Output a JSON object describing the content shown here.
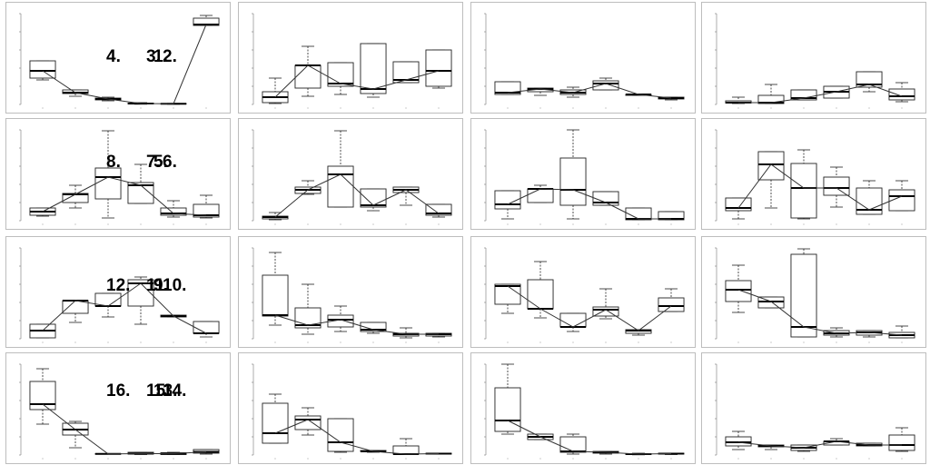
{
  "chart_data": [
    {
      "type": "box",
      "label": "1.",
      "categories": [
        "1",
        "2",
        "3",
        "4",
        "5",
        "6"
      ],
      "ylim": [
        0,
        10
      ],
      "boxes": [
        {
          "min": 2.7,
          "q1": 2.9,
          "median": 3.7,
          "q3": 4.8,
          "max": 4.8
        },
        {
          "min": 0.9,
          "q1": 1.2,
          "median": 1.3,
          "q3": 1.6,
          "max": 1.6
        },
        {
          "min": 0.4,
          "q1": 0.5,
          "median": 0.6,
          "q3": 0.7,
          "max": 0.8
        },
        {
          "min": 0.02,
          "q1": 0.05,
          "median": 0.1,
          "q3": 0.15,
          "max": 0.2
        },
        {
          "min": 0.02,
          "q1": 0.04,
          "median": 0.08,
          "q3": 0.1,
          "max": 0.12
        },
        {
          "min": 8.7,
          "q1": 8.7,
          "median": 8.8,
          "q3": 9.5,
          "max": 9.8
        }
      ]
    },
    {
      "type": "box",
      "label": "5.",
      "categories": [
        "1",
        "2",
        "3",
        "4",
        "5",
        "6"
      ],
      "ylim": [
        0,
        10
      ],
      "boxes": [
        {
          "min": 0.5,
          "q1": 0.6,
          "median": 1.0,
          "q3": 1.4,
          "max": 1.4
        },
        {
          "min": 1.4,
          "q1": 2.0,
          "median": 2.9,
          "q3": 3.0,
          "max": 3.9
        },
        {
          "min": 0.3,
          "q1": 2.4,
          "median": 4.8,
          "q3": 5.8,
          "max": 9.9
        },
        {
          "min": 1.9,
          "q1": 1.9,
          "median": 3.9,
          "q3": 4.2,
          "max": 6.2
        },
        {
          "min": 0.4,
          "q1": 0.6,
          "median": 0.8,
          "q3": 1.4,
          "max": 2.2
        },
        {
          "min": 0.3,
          "q1": 0.4,
          "median": 0.6,
          "q3": 1.8,
          "max": 2.8
        }
      ]
    },
    {
      "type": "box",
      "label": "9.",
      "categories": [
        "1",
        "2",
        "3",
        "4",
        "5",
        "6"
      ],
      "ylim": [
        0,
        10
      ],
      "boxes": [
        {
          "min": 0.1,
          "q1": 0.1,
          "median": 0.9,
          "q3": 1.6,
          "max": 1.6
        },
        {
          "min": 1.8,
          "q1": 2.8,
          "median": 4.2,
          "q3": 4.2,
          "max": 4.2
        },
        {
          "min": 2.4,
          "q1": 3.6,
          "median": 3.6,
          "q3": 5.0,
          "max": 5.0
        },
        {
          "min": 1.6,
          "q1": 3.6,
          "median": 6.1,
          "q3": 6.5,
          "max": 6.8
        },
        {
          "min": 2.4,
          "q1": 2.4,
          "median": 2.5,
          "q3": 2.6,
          "max": 2.6
        },
        {
          "min": 0.2,
          "q1": 0.6,
          "median": 0.6,
          "q3": 1.9,
          "max": 1.9
        }
      ]
    },
    {
      "type": "box",
      "label": "13.",
      "categories": [
        "1",
        "2",
        "3",
        "4",
        "5",
        "6"
      ],
      "ylim": [
        0,
        10
      ],
      "boxes": [
        {
          "min": 3.4,
          "q1": 5.0,
          "median": 5.6,
          "q3": 8.1,
          "max": 9.5
        },
        {
          "min": 0.8,
          "q1": 2.2,
          "median": 2.8,
          "q3": 3.5,
          "max": 3.7
        },
        {
          "min": 0.1,
          "q1": 0.1,
          "median": 0.12,
          "q3": 0.15,
          "max": 0.15
        },
        {
          "min": 0.05,
          "q1": 0.1,
          "median": 0.15,
          "q3": 0.3,
          "max": 0.3
        },
        {
          "min": 0.05,
          "q1": 0.05,
          "median": 0.15,
          "q3": 0.25,
          "max": 0.3
        },
        {
          "min": 0.1,
          "q1": 0.2,
          "median": 0.35,
          "q3": 0.6,
          "max": 0.6
        }
      ]
    },
    {
      "type": "box",
      "label": "2.",
      "categories": [
        "1",
        "2",
        "3",
        "4",
        "5",
        "6"
      ],
      "ylim": [
        0,
        10
      ],
      "boxes": [
        {
          "min": 0.1,
          "q1": 0.2,
          "median": 0.8,
          "q3": 1.4,
          "max": 2.9
        },
        {
          "min": 0.9,
          "q1": 1.8,
          "median": 4.3,
          "q3": 4.3,
          "max": 6.4
        },
        {
          "min": 1.1,
          "q1": 2.0,
          "median": 2.3,
          "q3": 4.6,
          "max": 4.6
        },
        {
          "min": 0.8,
          "q1": 1.2,
          "median": 1.7,
          "q3": 6.7,
          "max": 6.7
        },
        {
          "min": 2.4,
          "q1": 2.4,
          "median": 2.7,
          "q3": 4.7,
          "max": 4.7
        },
        {
          "min": 1.8,
          "q1": 2.0,
          "median": 3.7,
          "q3": 6.0,
          "max": 6.0
        }
      ]
    },
    {
      "type": "box",
      "label": "6.",
      "categories": [
        "1",
        "2",
        "3",
        "4",
        "5",
        "6"
      ],
      "ylim": [
        0,
        10
      ],
      "boxes": [
        {
          "min": 0.1,
          "q1": 0.2,
          "median": 0.4,
          "q3": 0.5,
          "max": 0.9
        },
        {
          "min": 2.9,
          "q1": 3.0,
          "median": 3.4,
          "q3": 3.7,
          "max": 4.4
        },
        {
          "min": 1.5,
          "q1": 1.5,
          "median": 5.1,
          "q3": 6.0,
          "max": 9.9
        },
        {
          "min": 1.1,
          "q1": 1.5,
          "median": 1.7,
          "q3": 3.5,
          "max": 3.5
        },
        {
          "min": 1.7,
          "q1": 3.1,
          "median": 3.4,
          "q3": 3.7,
          "max": 3.7
        },
        {
          "min": 0.4,
          "q1": 0.6,
          "median": 0.8,
          "q3": 1.8,
          "max": 1.8
        }
      ]
    },
    {
      "type": "box",
      "label": "10.",
      "categories": [
        "1",
        "2",
        "3",
        "4",
        "5",
        "6"
      ],
      "ylim": [
        0,
        10
      ],
      "boxes": [
        {
          "min": 1.5,
          "q1": 2.5,
          "median": 2.6,
          "q3": 7.0,
          "max": 9.5
        },
        {
          "min": 0.5,
          "q1": 1.2,
          "median": 1.5,
          "q3": 3.4,
          "max": 6.0
        },
        {
          "min": 0.8,
          "q1": 1.3,
          "median": 2.1,
          "q3": 2.6,
          "max": 3.6
        },
        {
          "min": 0.6,
          "q1": 0.8,
          "median": 1.0,
          "q3": 1.8,
          "max": 1.8
        },
        {
          "min": 0.1,
          "q1": 0.3,
          "median": 0.5,
          "q3": 0.6,
          "max": 1.2
        },
        {
          "min": 0.2,
          "q1": 0.3,
          "median": 0.5,
          "q3": 0.6,
          "max": 0.6
        }
      ]
    },
    {
      "type": "box",
      "label": "14.",
      "categories": [
        "1",
        "2",
        "3",
        "4",
        "5",
        "6"
      ],
      "ylim": [
        0,
        10
      ],
      "boxes": [
        {
          "min": 1.3,
          "q1": 1.3,
          "median": 2.4,
          "q3": 5.7,
          "max": 6.7
        },
        {
          "min": 2.2,
          "q1": 2.8,
          "median": 3.9,
          "q3": 4.3,
          "max": 5.2
        },
        {
          "min": 0.3,
          "q1": 0.4,
          "median": 1.4,
          "q3": 4.0,
          "max": 4.0
        },
        {
          "min": 0.3,
          "q1": 0.4,
          "median": 0.4,
          "q3": 0.5,
          "max": 0.5
        },
        {
          "min": 0.1,
          "q1": 0.1,
          "median": 0.1,
          "q3": 1.0,
          "max": 1.8
        },
        {
          "min": 0.1,
          "q1": 0.1,
          "median": 0.15,
          "q3": 0.2,
          "max": 0.2
        }
      ]
    },
    {
      "type": "box",
      "label": "3.",
      "categories": [
        "1",
        "2",
        "3",
        "4",
        "5",
        "6"
      ],
      "ylim": [
        0,
        10
      ],
      "boxes": [
        {
          "min": 1.1,
          "q1": 1.1,
          "median": 1.3,
          "q3": 2.5,
          "max": 2.5
        },
        {
          "min": 1.0,
          "q1": 1.4,
          "median": 1.7,
          "q3": 1.8,
          "max": 1.8
        },
        {
          "min": 0.8,
          "q1": 1.1,
          "median": 1.3,
          "q3": 1.6,
          "max": 1.9
        },
        {
          "min": 1.6,
          "q1": 1.6,
          "median": 2.3,
          "q3": 2.6,
          "max": 2.9
        },
        {
          "min": 1.0,
          "q1": 1.0,
          "median": 1.1,
          "q3": 1.1,
          "max": 1.1
        },
        {
          "min": 0.5,
          "q1": 0.6,
          "median": 0.7,
          "q3": 0.8,
          "max": 0.8
        }
      ]
    },
    {
      "type": "box",
      "label": "7.",
      "categories": [
        "1",
        "2",
        "3",
        "4",
        "5",
        "6"
      ],
      "ylim": [
        0,
        10
      ],
      "boxes": [
        {
          "min": 0.2,
          "q1": 1.3,
          "median": 1.8,
          "q3": 3.3,
          "max": 3.3
        },
        {
          "min": 2.0,
          "q1": 2.0,
          "median": 3.5,
          "q3": 3.5,
          "max": 3.9
        },
        {
          "min": 0.2,
          "q1": 1.7,
          "median": 3.4,
          "q3": 6.9,
          "max": 10.0
        },
        {
          "min": 1.7,
          "q1": 1.7,
          "median": 2.0,
          "q3": 3.2,
          "max": 3.2
        },
        {
          "min": 0.1,
          "q1": 0.1,
          "median": 0.2,
          "q3": 1.4,
          "max": 1.4
        },
        {
          "min": 0.1,
          "q1": 0.1,
          "median": 0.2,
          "q3": 1.0,
          "max": 1.0
        }
      ]
    },
    {
      "type": "box",
      "label": "11.",
      "categories": [
        "1",
        "2",
        "3",
        "4",
        "5",
        "6"
      ],
      "ylim": [
        0,
        10
      ],
      "boxes": [
        {
          "min": 2.8,
          "q1": 3.8,
          "median": 5.8,
          "q3": 6.0,
          "max": 6.0
        },
        {
          "min": 2.3,
          "q1": 3.3,
          "median": 3.3,
          "q3": 6.5,
          "max": 8.5
        },
        {
          "min": 0.8,
          "q1": 1.3,
          "median": 1.3,
          "q3": 2.8,
          "max": 2.8
        },
        {
          "min": 2.2,
          "q1": 2.5,
          "median": 3.2,
          "q3": 3.5,
          "max": 5.5
        },
        {
          "min": 0.4,
          "q1": 0.6,
          "median": 0.9,
          "q3": 1.0,
          "max": 1.0
        },
        {
          "min": 3.0,
          "q1": 3.0,
          "median": 3.6,
          "q3": 4.5,
          "max": 5.5
        }
      ]
    },
    {
      "type": "box",
      "label": "15.",
      "categories": [
        "1",
        "2",
        "3",
        "4",
        "5",
        "6"
      ],
      "ylim": [
        0,
        10
      ],
      "boxes": [
        {
          "min": 2.3,
          "q1": 2.6,
          "median": 3.8,
          "q3": 7.4,
          "max": 10.0
        },
        {
          "min": 1.7,
          "q1": 1.7,
          "median": 2.0,
          "q3": 2.3,
          "max": 2.3
        },
        {
          "min": 0.1,
          "q1": 0.3,
          "median": 0.4,
          "q3": 2.0,
          "max": 2.3
        },
        {
          "min": 0.1,
          "q1": 0.2,
          "median": 0.3,
          "q3": 0.4,
          "max": 0.4
        },
        {
          "min": 0.02,
          "q1": 0.05,
          "median": 0.1,
          "q3": 0.15,
          "max": 0.2
        },
        {
          "min": 0.05,
          "q1": 0.1,
          "median": 0.15,
          "q3": 0.2,
          "max": 0.2
        }
      ]
    },
    {
      "type": "box",
      "label": "4.",
      "categories": [
        "1",
        "2",
        "3",
        "4",
        "5",
        "6"
      ],
      "ylim": [
        0,
        10
      ],
      "boxes": [
        {
          "min": 0.1,
          "q1": 0.15,
          "median": 0.2,
          "q3": 0.4,
          "max": 0.8
        },
        {
          "min": 0.1,
          "q1": 0.1,
          "median": 0.2,
          "q3": 1.0,
          "max": 2.2
        },
        {
          "min": 0.5,
          "q1": 0.5,
          "median": 0.7,
          "q3": 1.6,
          "max": 1.6
        },
        {
          "min": 0.7,
          "q1": 0.7,
          "median": 1.4,
          "q3": 2.0,
          "max": 2.0
        },
        {
          "min": 1.4,
          "q1": 1.9,
          "median": 2.2,
          "q3": 3.6,
          "max": 3.6
        },
        {
          "min": 0.3,
          "q1": 0.5,
          "median": 0.9,
          "q3": 1.7,
          "max": 2.4
        }
      ]
    },
    {
      "type": "box",
      "label": "8.",
      "categories": [
        "1",
        "2",
        "3",
        "4",
        "5",
        "6"
      ],
      "ylim": [
        0,
        10
      ],
      "boxes": [
        {
          "min": 0.2,
          "q1": 1.1,
          "median": 1.4,
          "q3": 2.5,
          "max": 2.5
        },
        {
          "min": 1.4,
          "q1": 4.5,
          "median": 6.2,
          "q3": 7.6,
          "max": 7.6
        },
        {
          "min": 0.2,
          "q1": 0.3,
          "median": 3.6,
          "q3": 6.3,
          "max": 7.8
        },
        {
          "min": 1.5,
          "q1": 2.8,
          "median": 3.6,
          "q3": 4.8,
          "max": 5.9
        },
        {
          "min": 0.7,
          "q1": 0.7,
          "median": 1.2,
          "q3": 3.6,
          "max": 4.4
        },
        {
          "min": 1.1,
          "q1": 1.1,
          "median": 2.7,
          "q3": 3.4,
          "max": 4.4
        }
      ]
    },
    {
      "type": "box",
      "label": "12.",
      "categories": [
        "1",
        "2",
        "3",
        "4",
        "5",
        "6"
      ],
      "ylim": [
        0,
        10
      ],
      "boxes": [
        {
          "min": 2.9,
          "q1": 4.1,
          "median": 5.4,
          "q3": 6.4,
          "max": 8.1
        },
        {
          "min": 3.4,
          "q1": 3.4,
          "median": 4.1,
          "q3": 4.6,
          "max": 4.6
        },
        {
          "min": 0.2,
          "q1": 0.2,
          "median": 1.3,
          "q3": 9.3,
          "max": 9.9
        },
        {
          "min": 0.2,
          "q1": 0.4,
          "median": 0.6,
          "q3": 0.9,
          "max": 1.2
        },
        {
          "min": 0.2,
          "q1": 0.4,
          "median": 0.7,
          "q3": 0.9,
          "max": 0.9
        },
        {
          "min": 0.1,
          "q1": 0.1,
          "median": 0.4,
          "q3": 0.7,
          "max": 1.4
        }
      ]
    },
    {
      "type": "box",
      "label": "16.",
      "categories": [
        "1",
        "2",
        "3",
        "4",
        "5",
        "6"
      ],
      "ylim": [
        0,
        10
      ],
      "boxes": [
        {
          "min": 0.6,
          "q1": 1.0,
          "median": 1.4,
          "q3": 2.0,
          "max": 2.6
        },
        {
          "min": 0.6,
          "q1": 0.9,
          "median": 1.0,
          "q3": 1.1,
          "max": 1.1
        },
        {
          "min": 0.4,
          "q1": 0.5,
          "median": 0.8,
          "q3": 1.1,
          "max": 1.1
        },
        {
          "min": 1.1,
          "q1": 1.1,
          "median": 1.5,
          "q3": 1.5,
          "max": 1.8
        },
        {
          "min": 1.0,
          "q1": 1.0,
          "median": 1.1,
          "q3": 1.3,
          "max": 1.3
        },
        {
          "min": 0.4,
          "q1": 0.5,
          "median": 1.1,
          "q3": 2.2,
          "max": 3.0
        }
      ]
    }
  ]
}
